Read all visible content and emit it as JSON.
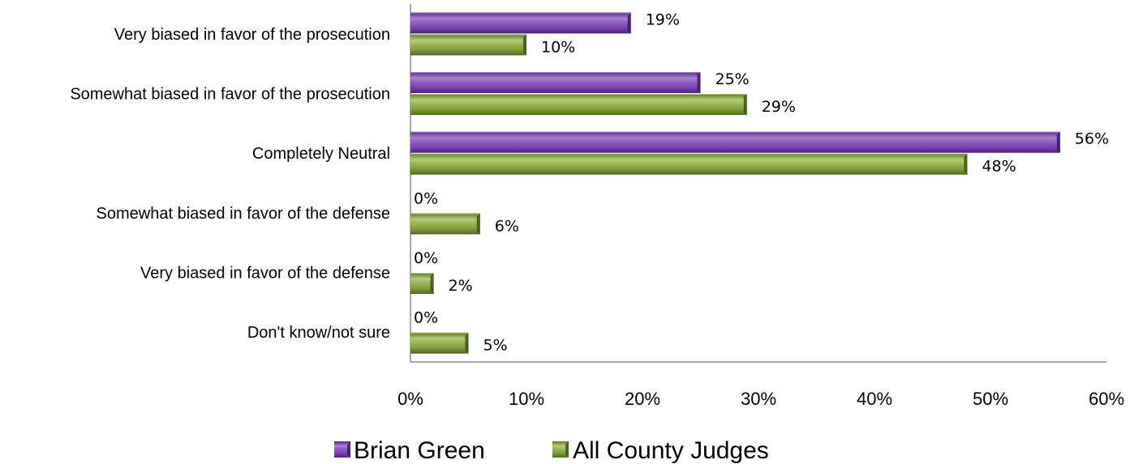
{
  "chart_data": {
    "type": "bar",
    "orientation": "horizontal",
    "categories": [
      "Very biased in favor of the prosecution",
      "Somewhat biased in favor of the prosecution",
      "Completely Neutral",
      "Somewhat biased in favor of the defense",
      "Very biased in favor of the defense",
      "Don't know/not sure"
    ],
    "series": [
      {
        "name": "Brian Green",
        "values": [
          19,
          25,
          56,
          0,
          0,
          0
        ],
        "labels": [
          "19%",
          "25%",
          "56%",
          "0%",
          "0%",
          "0%"
        ],
        "color": "#7B3FB0"
      },
      {
        "name": "All County Judges",
        "values": [
          10,
          29,
          48,
          6,
          2,
          5
        ],
        "labels": [
          "10%",
          "29%",
          "48%",
          "6%",
          "2%",
          "5%"
        ],
        "color": "#7E9A3B"
      }
    ],
    "xlim": [
      0,
      60
    ],
    "x_ticks": [
      0,
      10,
      20,
      30,
      40,
      50,
      60
    ],
    "x_tick_labels": [
      "0%",
      "10%",
      "20%",
      "30%",
      "40%",
      "50%",
      "60%"
    ],
    "grid": false,
    "legend_position": "bottom"
  }
}
